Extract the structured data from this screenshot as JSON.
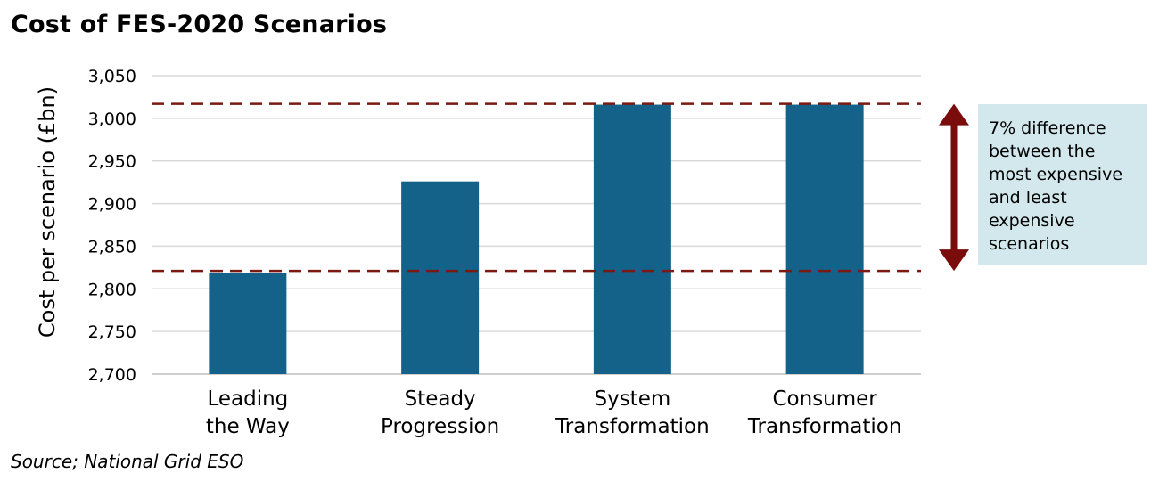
{
  "chart_data": {
    "type": "bar",
    "title": "Cost of FES-2020 Scenarios",
    "ylabel": "Cost per scenario (£bn)",
    "xlabel": "",
    "categories": [
      [
        "Leading",
        "the Way"
      ],
      [
        "Steady",
        "Progression"
      ],
      [
        "System",
        "Transformation"
      ],
      [
        "Consumer",
        "Transformation"
      ]
    ],
    "values": [
      2819,
      2926,
      3016,
      3016
    ],
    "ylim": [
      2700,
      3050
    ],
    "yticks": [
      "3,050",
      "3,000",
      "2,950",
      "2,900",
      "2,850",
      "2,800",
      "2,750",
      "2,700"
    ],
    "ytick_values": [
      3050,
      3000,
      2950,
      2900,
      2850,
      2800,
      2750,
      2700
    ],
    "reference_lines": [
      3017,
      2821
    ],
    "grid": true,
    "colors": {
      "bar": "#14628a",
      "reference_line": "#7a1a12",
      "arrow": "#7a0c0c",
      "grid": "#d9d9d9",
      "annotation_bg": "#d2e8ec"
    },
    "annotation": [
      "7% difference",
      "between the",
      "most expensive",
      "and least",
      "expensive",
      "scenarios"
    ],
    "source": "Source; National Grid ESO"
  }
}
